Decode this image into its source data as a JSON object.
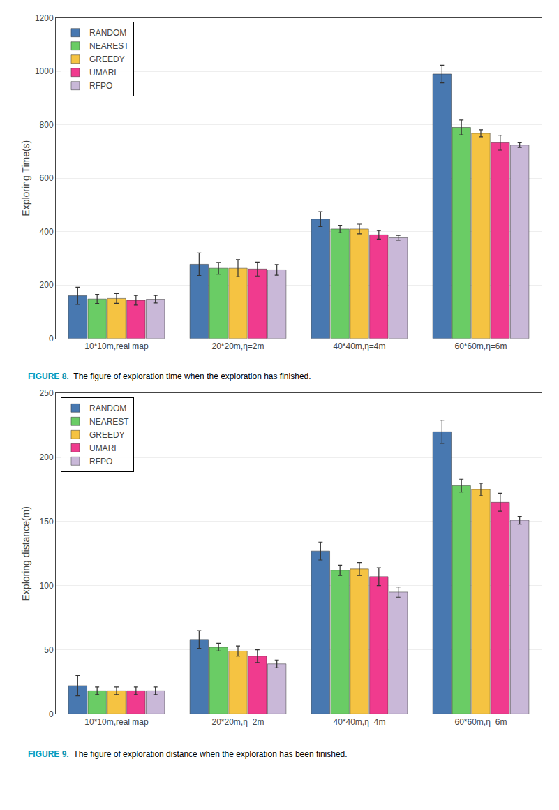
{
  "chart_data": [
    {
      "type": "bar",
      "ylabel": "Exploring Time(s)",
      "ylim": [
        0,
        1200
      ],
      "yticks": [
        0,
        200,
        400,
        600,
        800,
        1000,
        1200
      ],
      "grid": true,
      "legend": "upper left",
      "categories": [
        "10*10m,real map",
        "20*20m,η=2m",
        "40*40m,η=4m",
        "60*60m,η=6m"
      ],
      "annotations": [
        "FIGURE 8.",
        "The figure of exploration time when the exploration has finished."
      ],
      "series": [
        {
          "name": "RANDOM",
          "color": "#4878b0",
          "values": [
            160,
            278,
            447,
            990
          ],
          "errors": [
            32,
            42,
            28,
            33
          ]
        },
        {
          "name": "NEAREST",
          "color": "#6acc65",
          "values": [
            148,
            263,
            410,
            790
          ],
          "errors": [
            17,
            22,
            14,
            28
          ]
        },
        {
          "name": "GREEDY",
          "color": "#f5c342",
          "values": [
            150,
            263,
            410,
            768
          ],
          "errors": [
            18,
            32,
            18,
            13
          ]
        },
        {
          "name": "UMARI",
          "color": "#f03b8e",
          "values": [
            143,
            260,
            388,
            733
          ],
          "errors": [
            18,
            26,
            16,
            28
          ]
        },
        {
          "name": "RFPO",
          "color": "#c9b8d8",
          "values": [
            147,
            257,
            377,
            724
          ],
          "errors": [
            14,
            20,
            9,
            9
          ]
        }
      ]
    },
    {
      "type": "bar",
      "ylabel": "Exploring distance(m)",
      "ylim": [
        0,
        250
      ],
      "yticks": [
        0,
        50,
        100,
        150,
        200,
        250
      ],
      "grid": true,
      "legend": "upper left",
      "categories": [
        "10*10m,real map",
        "20*20m,η=2m",
        "40*40m,η=4m",
        "60*60m,η=6m"
      ],
      "annotations": [
        "FIGURE 9.",
        "The figure of exploration distance when the exploration has been finished."
      ],
      "series": [
        {
          "name": "RANDOM",
          "color": "#4878b0",
          "values": [
            22,
            58,
            127,
            220
          ],
          "errors": [
            8,
            7,
            7,
            9
          ]
        },
        {
          "name": "NEAREST",
          "color": "#6acc65",
          "values": [
            18,
            52,
            112,
            178
          ],
          "errors": [
            3,
            3,
            4,
            5
          ]
        },
        {
          "name": "GREEDY",
          "color": "#f5c342",
          "values": [
            18,
            49,
            113,
            175
          ],
          "errors": [
            3,
            4,
            5,
            5
          ]
        },
        {
          "name": "UMARI",
          "color": "#f03b8e",
          "values": [
            18,
            45,
            107,
            165
          ],
          "errors": [
            3,
            5,
            7,
            7
          ]
        },
        {
          "name": "RFPO",
          "color": "#c9b8d8",
          "values": [
            18,
            39,
            95,
            151
          ],
          "errors": [
            3,
            3,
            4,
            3
          ]
        }
      ]
    }
  ]
}
